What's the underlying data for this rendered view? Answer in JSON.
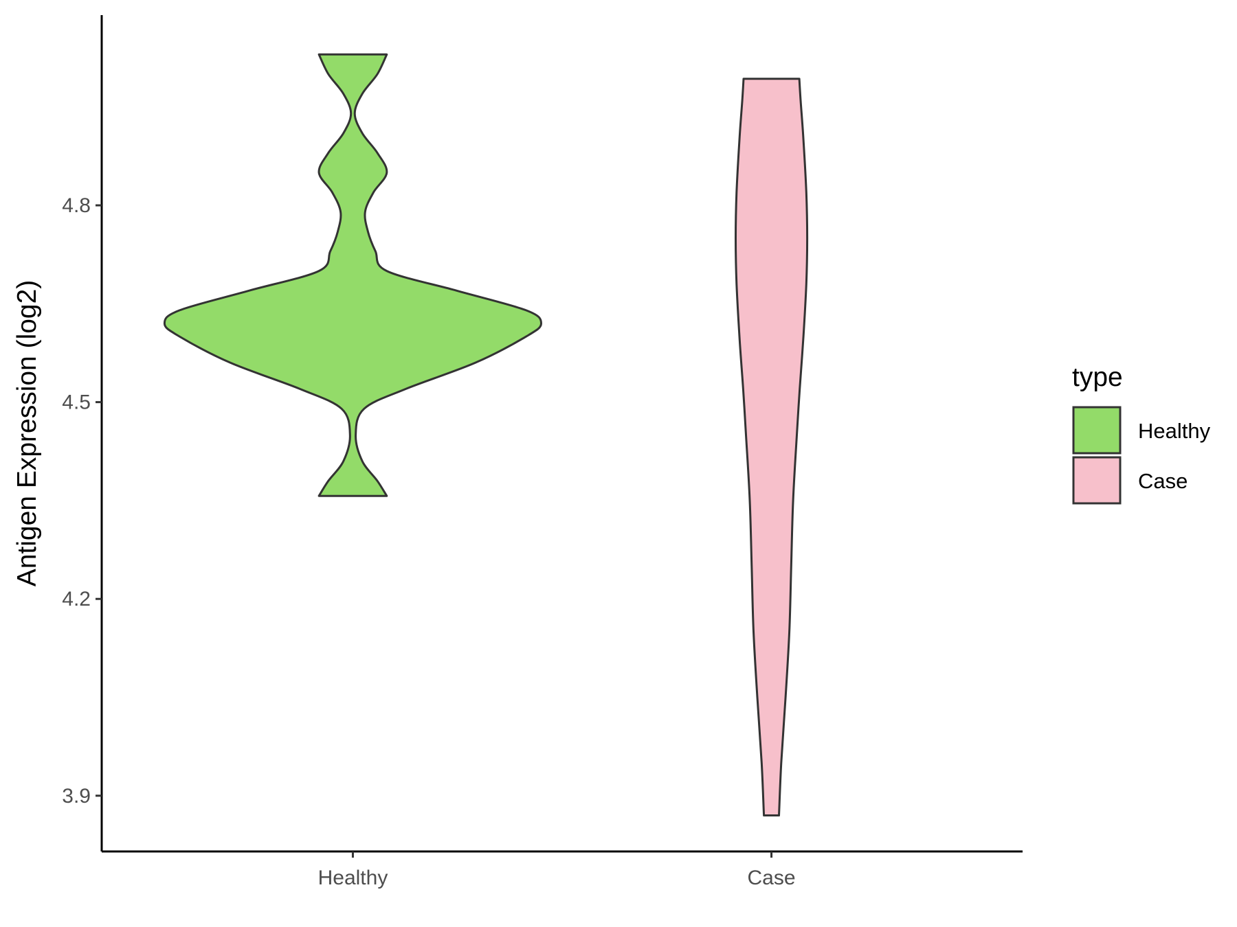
{
  "chart_data": {
    "type": "violin",
    "title": "",
    "xlabel": "",
    "ylabel": "Antigen Expression (log2)",
    "ylim": [
      3.815,
      5.09
    ],
    "yticks": [
      3.9,
      4.2,
      4.5,
      4.8
    ],
    "ytick_labels": [
      "3.9",
      "4.2",
      "4.5",
      "4.8"
    ],
    "categories": [
      "Healthy",
      "Case"
    ],
    "grid": false,
    "legend": {
      "title": "type",
      "position": "right",
      "entries": [
        "Healthy",
        "Case"
      ]
    },
    "series": [
      {
        "name": "Healthy",
        "color": "#93DB69",
        "range": [
          4.357,
          5.03
        ],
        "density_profile": [
          {
            "y": 4.357,
            "w": 0.18
          },
          {
            "y": 4.38,
            "w": 0.13
          },
          {
            "y": 4.41,
            "w": 0.05
          },
          {
            "y": 4.45,
            "w": 0.015
          },
          {
            "y": 4.49,
            "w": 0.06
          },
          {
            "y": 4.52,
            "w": 0.28
          },
          {
            "y": 4.56,
            "w": 0.65
          },
          {
            "y": 4.6,
            "w": 0.92
          },
          {
            "y": 4.62,
            "w": 1.0
          },
          {
            "y": 4.64,
            "w": 0.92
          },
          {
            "y": 4.67,
            "w": 0.55
          },
          {
            "y": 4.7,
            "w": 0.18
          },
          {
            "y": 4.73,
            "w": 0.12
          },
          {
            "y": 4.76,
            "w": 0.08
          },
          {
            "y": 4.79,
            "w": 0.065
          },
          {
            "y": 4.82,
            "w": 0.11
          },
          {
            "y": 4.85,
            "w": 0.18
          },
          {
            "y": 4.88,
            "w": 0.13
          },
          {
            "y": 4.91,
            "w": 0.05
          },
          {
            "y": 4.94,
            "w": 0.01
          },
          {
            "y": 4.97,
            "w": 0.05
          },
          {
            "y": 5.0,
            "w": 0.13
          },
          {
            "y": 5.03,
            "w": 0.18
          }
        ]
      },
      {
        "name": "Case",
        "color": "#F7C0CB",
        "range": [
          3.87,
          4.993
        ],
        "density_profile": [
          {
            "y": 3.87,
            "w": 0.04
          },
          {
            "y": 3.95,
            "w": 0.052
          },
          {
            "y": 4.05,
            "w": 0.075
          },
          {
            "y": 4.15,
            "w": 0.095
          },
          {
            "y": 4.25,
            "w": 0.105
          },
          {
            "y": 4.35,
            "w": 0.115
          },
          {
            "y": 4.45,
            "w": 0.135
          },
          {
            "y": 4.52,
            "w": 0.15
          },
          {
            "y": 4.6,
            "w": 0.17
          },
          {
            "y": 4.68,
            "w": 0.185
          },
          {
            "y": 4.75,
            "w": 0.19
          },
          {
            "y": 4.82,
            "w": 0.185
          },
          {
            "y": 4.9,
            "w": 0.17
          },
          {
            "y": 4.96,
            "w": 0.155
          },
          {
            "y": 4.993,
            "w": 0.148
          }
        ]
      }
    ]
  }
}
